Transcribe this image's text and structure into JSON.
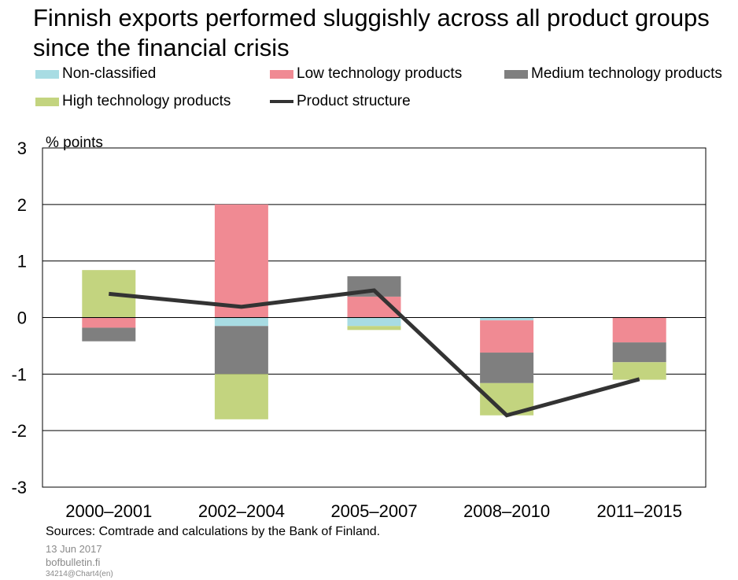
{
  "title": "Finnish exports performed sluggishly across all product groups since the financial crisis",
  "legend": {
    "non_classified": "Non-classified",
    "low_tech": "Low technology products",
    "medium_tech": "Medium technology products",
    "high_tech": "High technology products",
    "structure": "Product structure"
  },
  "colors": {
    "non_classified": "#a8dce3",
    "low_tech": "#f08a93",
    "medium_tech": "#7f7f7f",
    "high_tech": "#c3d47f",
    "structure": "#333333"
  },
  "footer": {
    "sources": "Sources: Comtrade and calculations by the Bank of Finland.",
    "date": "13 Jun 2017",
    "site": "bofbulletin.fi",
    "code": "34214@Chart4(en)"
  },
  "chart_data": {
    "type": "bar",
    "stacked": true,
    "ylabel": "% points",
    "ylim": [
      -3,
      3
    ],
    "yticks": [
      3,
      2,
      1,
      0,
      -1,
      -2,
      -3
    ],
    "grid": true,
    "categories": [
      "2000–2001",
      "2002–2004",
      "2005–2007",
      "2008–2010",
      "2011–2015"
    ],
    "series": [
      {
        "name": "Non-classified",
        "key": "non_classified",
        "values": [
          0.0,
          -0.15,
          -0.15,
          -0.05,
          0.0
        ]
      },
      {
        "name": "Low technology products",
        "key": "low_tech",
        "values": [
          -0.18,
          2.0,
          0.37,
          -0.57,
          -0.44
        ]
      },
      {
        "name": "Medium technology products",
        "key": "medium_tech",
        "values": [
          -0.24,
          -0.85,
          0.36,
          -0.54,
          -0.35
        ]
      },
      {
        "name": "High technology products",
        "key": "high_tech",
        "values": [
          0.84,
          -0.8,
          -0.07,
          -0.57,
          -0.31
        ]
      },
      {
        "name": "Product structure",
        "key": "structure",
        "type": "line",
        "values": [
          0.42,
          0.19,
          0.48,
          -1.73,
          -1.09
        ]
      }
    ]
  }
}
